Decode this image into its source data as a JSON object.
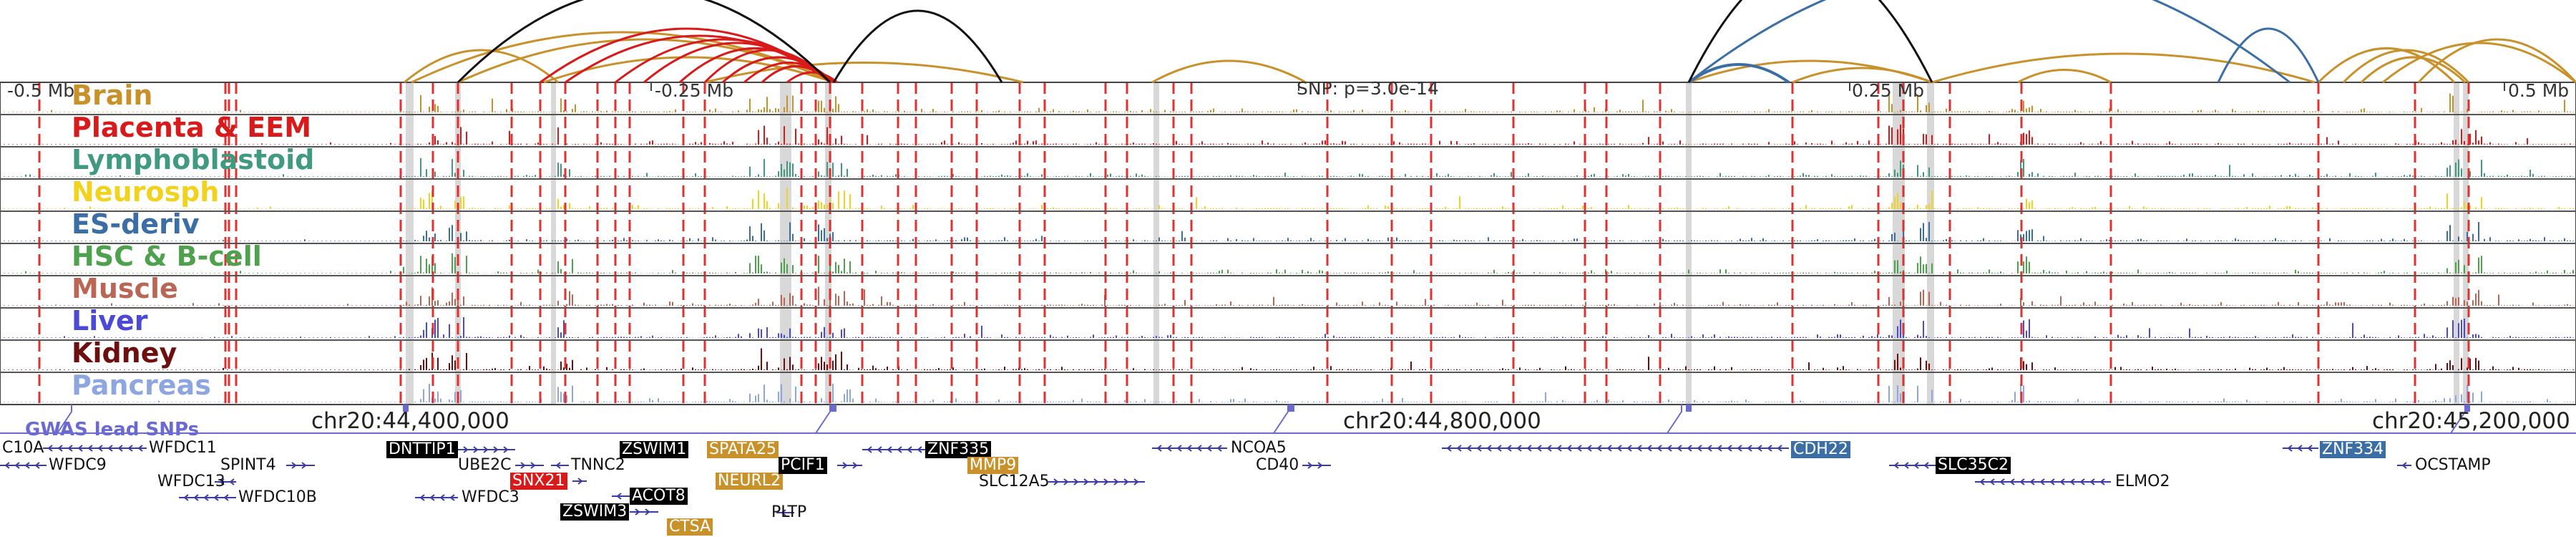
{
  "colors": {
    "brain": "#c8912a",
    "placenta": "#d91a1a",
    "lymphoblastoid": "#3f9a80",
    "neurosph": "#f1d21c",
    "es_deriv": "#3a6ea5",
    "hsc": "#4ea24e",
    "muscle": "#bb6655",
    "liver": "#4a4ad6",
    "kidney": "#6d0f0f",
    "pancreas": "#8ea6e0",
    "snp_line": "#e03030",
    "highlight_band": "#d8d8d8",
    "gwas": "#6a6ad0",
    "gene_strand": "#3a3aa8"
  },
  "tracks": [
    {
      "label": "Brain",
      "color_key": "brain"
    },
    {
      "label": "Placenta & EEM",
      "color_key": "placenta"
    },
    {
      "label": "Lymphoblastoid",
      "color_key": "lymphoblastoid"
    },
    {
      "label": "Neurosph",
      "color_key": "neurosph"
    },
    {
      "label": "ES-deriv",
      "color_key": "es_deriv"
    },
    {
      "label": "HSC & B-cell",
      "color_key": "hsc"
    },
    {
      "label": "Muscle",
      "color_key": "muscle"
    },
    {
      "label": "Liver",
      "color_key": "liver"
    },
    {
      "label": "Kidney",
      "color_key": "kidney"
    },
    {
      "label": "Pancreas",
      "color_key": "pancreas"
    }
  ],
  "scale_labels": {
    "left": "-0.5 Mb",
    "m025": "-0.25 Mb",
    "p025": "0.25 Mb",
    "p05": "0.5 Mb"
  },
  "snp_annotation": "SNP: p=3.0e-14",
  "coordinates": {
    "c1": "chr20:44,400,000",
    "c2": "chr20:44,800,000",
    "c3": "chr20:45,200,000"
  },
  "gwas_label": "GWAS lead SNPs",
  "genes": {
    "c10a": "C10A",
    "wfdc11": "WFDC11",
    "wfdc9": "WFDC9",
    "spint4": "SPINT4",
    "wfdc13": "WFDC13",
    "wfdc10b": "WFDC10B",
    "dnttip1": "DNTTIP1",
    "ube2c": "UBE2C",
    "wfdc3": "WFDC3",
    "tnnc2": "TNNC2",
    "snx21": "SNX21",
    "zswim1": "ZSWIM1",
    "acot8": "ACOT8",
    "zswim3": "ZSWIM3",
    "spata25": "SPATA25",
    "neurl2": "NEURL2",
    "ctsa": "CTSA",
    "pcif1": "PCIF1",
    "pltp": "PLTP",
    "znf335": "ZNF335",
    "mmp9": "MMP9",
    "slc12a5": "SLC12A5",
    "ncoa5": "NCOA5",
    "cd40": "CD40",
    "cdh22": "CDH22",
    "slc35c2": "SLC35C2",
    "elmo2": "ELMO2",
    "znf334": "ZNF334",
    "ocstamp": "OCSTAMP"
  }
}
